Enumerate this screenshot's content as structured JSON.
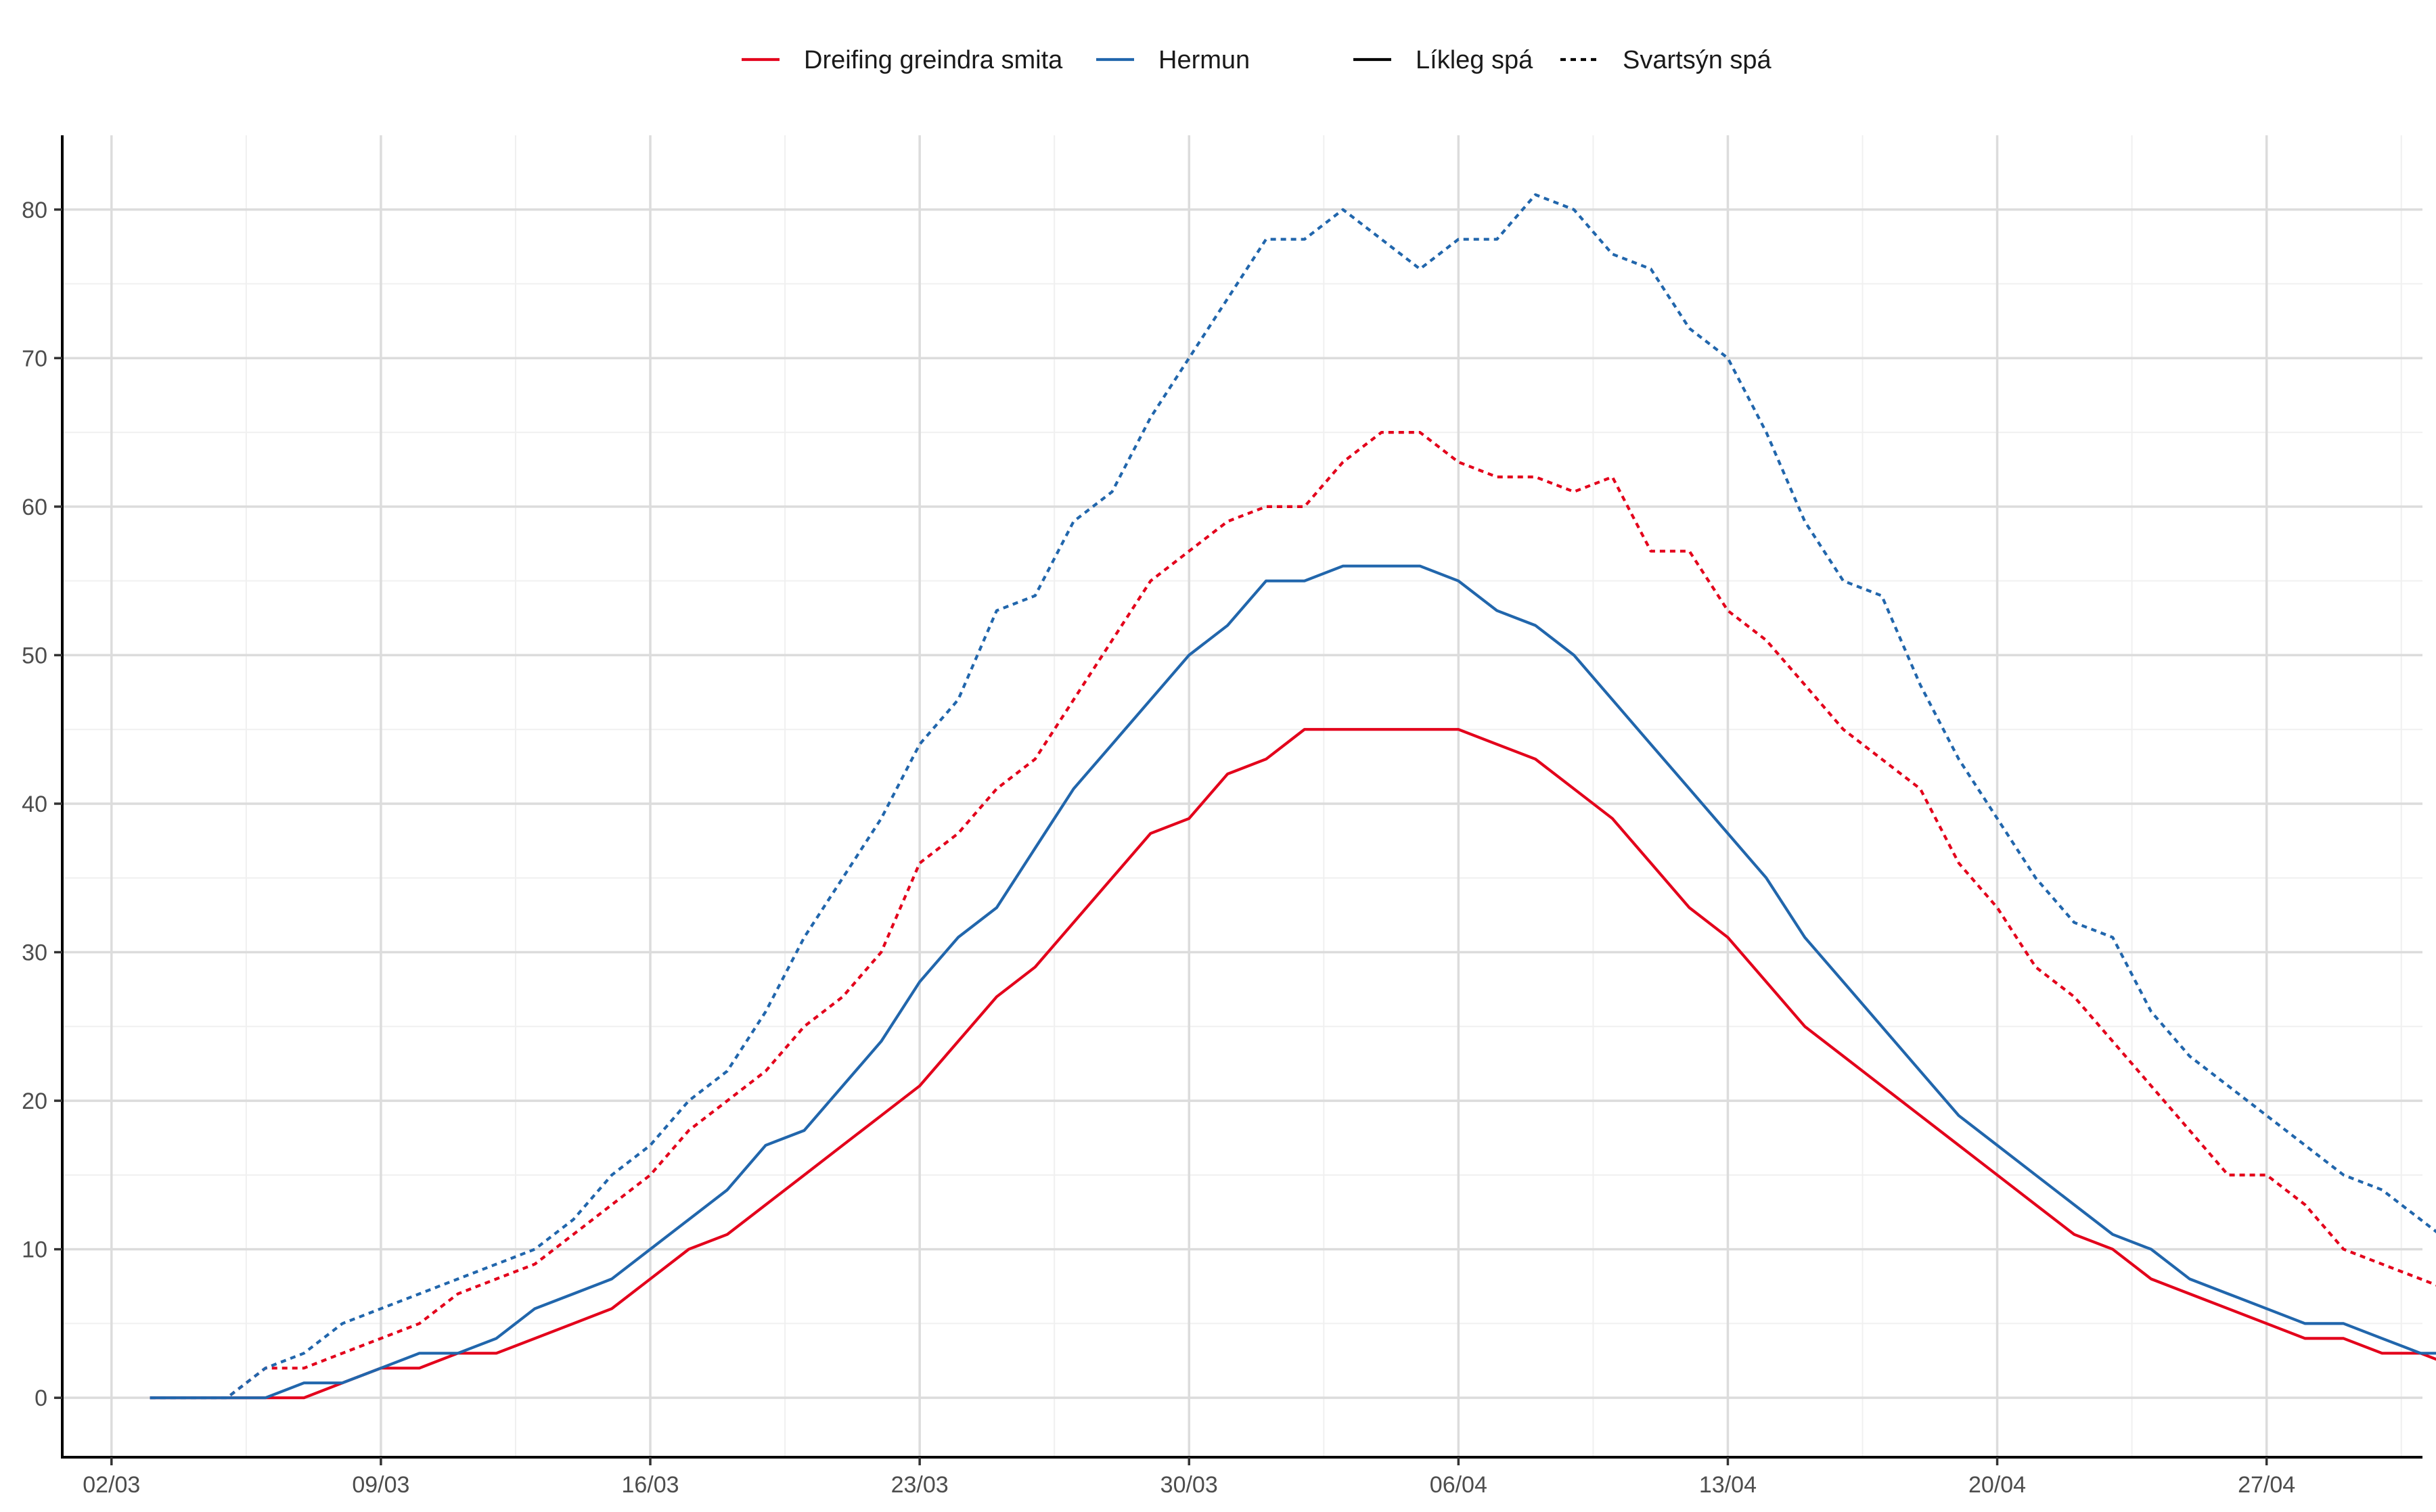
{
  "chart_data": {
    "type": "line",
    "title": "",
    "xlabel": "",
    "ylabel": "",
    "x_start": "2020-03-03",
    "x_end": "2020-04-30",
    "x_ticks": [
      "02/03",
      "09/03",
      "16/03",
      "23/03",
      "30/03",
      "06/04",
      "13/04",
      "20/04",
      "27/04"
    ],
    "y_ticks": [
      0,
      10,
      20,
      30,
      40,
      50,
      60,
      70,
      80
    ],
    "ylim": [
      -4,
      85
    ],
    "grid": true,
    "legend_position": "top",
    "legend": {
      "color_entries": [
        {
          "label": "Dreifing greindra smita",
          "color": "#e3001b"
        },
        {
          "label": "Hermun",
          "color": "#2166ac"
        }
      ],
      "linetype_entries": [
        {
          "label": "Líkleg spá",
          "dash": "solid"
        },
        {
          "label": "Svartsýn spá",
          "dash": "dotted"
        }
      ]
    },
    "series": [
      {
        "group": "Dreifing greindra smita",
        "forecast": "Líkleg spá",
        "color": "#e3001b",
        "dash": "solid",
        "values": [
          0,
          0,
          0,
          0,
          0,
          1,
          2,
          2,
          3,
          3,
          4,
          5,
          6,
          8,
          10,
          11,
          13,
          15,
          17,
          19,
          21,
          24,
          27,
          29,
          32,
          35,
          38,
          39,
          42,
          43,
          45,
          45,
          45,
          45,
          45,
          44,
          43,
          41,
          39,
          36,
          33,
          31,
          28,
          25,
          23,
          21,
          19,
          17,
          15,
          13,
          11,
          10,
          8,
          7,
          6,
          5,
          4,
          4,
          3,
          3,
          2
        ]
      },
      {
        "group": "Dreifing greindra smita",
        "forecast": "Svartsýn spá",
        "color": "#e3001b",
        "dash": "dotted",
        "values": [
          0,
          0,
          0,
          2,
          2,
          3,
          4,
          5,
          7,
          8,
          9,
          11,
          13,
          15,
          18,
          20,
          22,
          25,
          27,
          30,
          36,
          38,
          41,
          43,
          47,
          51,
          55,
          57,
          59,
          60,
          60,
          63,
          65,
          65,
          63,
          62,
          62,
          61,
          62,
          57,
          57,
          53,
          51,
          48,
          45,
          43,
          41,
          36,
          33,
          29,
          27,
          24,
          21,
          18,
          15,
          15,
          13,
          10,
          9,
          8,
          7
        ]
      },
      {
        "group": "Hermun",
        "forecast": "Líkleg spá",
        "color": "#2166ac",
        "dash": "solid",
        "values": [
          0,
          0,
          0,
          0,
          1,
          1,
          2,
          3,
          3,
          4,
          6,
          7,
          8,
          10,
          12,
          14,
          17,
          18,
          21,
          24,
          28,
          31,
          33,
          37,
          41,
          44,
          47,
          50,
          52,
          55,
          55,
          56,
          56,
          56,
          55,
          53,
          52,
          50,
          47,
          44,
          41,
          38,
          35,
          31,
          28,
          25,
          22,
          19,
          17,
          15,
          13,
          11,
          10,
          8,
          7,
          6,
          5,
          5,
          4,
          3,
          3
        ]
      },
      {
        "group": "Hermun",
        "forecast": "Svartsýn spá",
        "color": "#2166ac",
        "dash": "dotted",
        "values": [
          0,
          0,
          0,
          2,
          3,
          5,
          6,
          7,
          8,
          9,
          10,
          12,
          15,
          17,
          20,
          22,
          26,
          31,
          35,
          39,
          44,
          47,
          53,
          54,
          59,
          61,
          66,
          70,
          74,
          78,
          78,
          80,
          78,
          76,
          78,
          78,
          81,
          80,
          77,
          76,
          72,
          70,
          65,
          59,
          55,
          54,
          48,
          43,
          39,
          35,
          32,
          31,
          26,
          23,
          21,
          19,
          17,
          15,
          14,
          12,
          10
        ]
      }
    ]
  }
}
